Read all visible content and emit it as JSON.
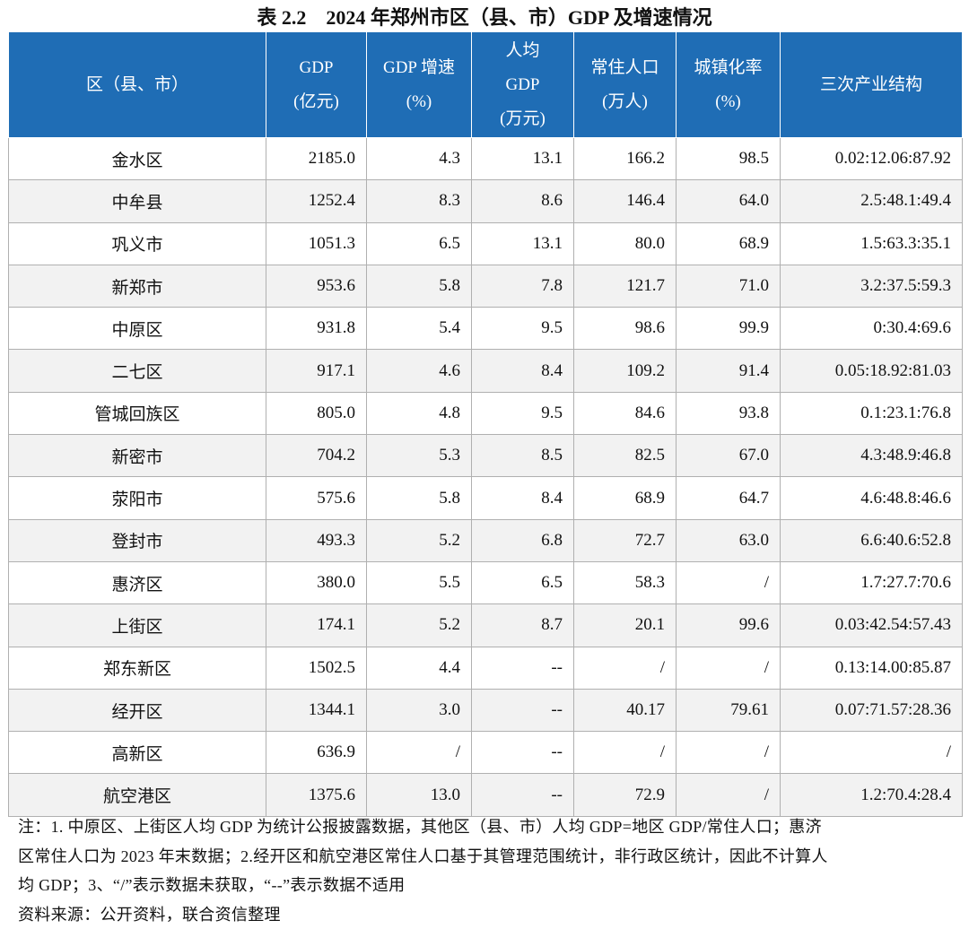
{
  "header": {
    "title": "表 2.2　2024 年郑州市区（县、市）GDP 及增速情况"
  },
  "table": {
    "columns": [
      [
        "区（县、市）"
      ],
      [
        "GDP",
        "(亿元)"
      ],
      [
        "GDP 增速",
        "(%)"
      ],
      [
        "人均",
        "GDP",
        "(万元)"
      ],
      [
        "常住人口",
        "(万人)"
      ],
      [
        "城镇化率",
        "(%)"
      ],
      [
        "三次产业结构"
      ]
    ],
    "rows": [
      [
        "金水区",
        "2185.0",
        "4.3",
        "13.1",
        "166.2",
        "98.5",
        "0.02:12.06:87.92"
      ],
      [
        "中牟县",
        "1252.4",
        "8.3",
        "8.6",
        "146.4",
        "64.0",
        "2.5:48.1:49.4"
      ],
      [
        "巩义市",
        "1051.3",
        "6.5",
        "13.1",
        "80.0",
        "68.9",
        "1.5:63.3:35.1"
      ],
      [
        "新郑市",
        "953.6",
        "5.8",
        "7.8",
        "121.7",
        "71.0",
        "3.2:37.5:59.3"
      ],
      [
        "中原区",
        "931.8",
        "5.4",
        "9.5",
        "98.6",
        "99.9",
        "0:30.4:69.6"
      ],
      [
        "二七区",
        "917.1",
        "4.6",
        "8.4",
        "109.2",
        "91.4",
        "0.05:18.92:81.03"
      ],
      [
        "管城回族区",
        "805.0",
        "4.8",
        "9.5",
        "84.6",
        "93.8",
        "0.1:23.1:76.8"
      ],
      [
        "新密市",
        "704.2",
        "5.3",
        "8.5",
        "82.5",
        "67.0",
        "4.3:48.9:46.8"
      ],
      [
        "荥阳市",
        "575.6",
        "5.8",
        "8.4",
        "68.9",
        "64.7",
        "4.6:48.8:46.6"
      ],
      [
        "登封市",
        "493.3",
        "5.2",
        "6.8",
        "72.7",
        "63.0",
        "6.6:40.6:52.8"
      ],
      [
        "惠济区",
        "380.0",
        "5.5",
        "6.5",
        "58.3",
        "/",
        "1.7:27.7:70.6"
      ],
      [
        "上街区",
        "174.1",
        "5.2",
        "8.7",
        "20.1",
        "99.6",
        "0.03:42.54:57.43"
      ],
      [
        "郑东新区",
        "1502.5",
        "4.4",
        "--",
        "/",
        "/",
        "0.13:14.00:85.87"
      ],
      [
        "经开区",
        "1344.1",
        "3.0",
        "--",
        "40.17",
        "79.61",
        "0.07:71.57:28.36"
      ],
      [
        "高新区",
        "636.9",
        "/",
        "--",
        "/",
        "/",
        "/"
      ],
      [
        "航空港区",
        "1375.6",
        "13.0",
        "--",
        "72.9",
        "/",
        "1.2:70.4:28.4"
      ]
    ]
  },
  "notes": [
    "注：1. 中原区、上街区人均 GDP 为统计公报披露数据，其他区（县、市）人均 GDP=地区 GDP/常住人口；惠济",
    "区常住人口为 2023 年末数据；2.经开区和航空港区常住人口基于其管理范围统计，非行政区统计，因此不计算人",
    "均 GDP；3、“/”表示数据未获取，“--”表示数据不适用"
  ],
  "source": "资料来源：公开资料，联合资信整理"
}
